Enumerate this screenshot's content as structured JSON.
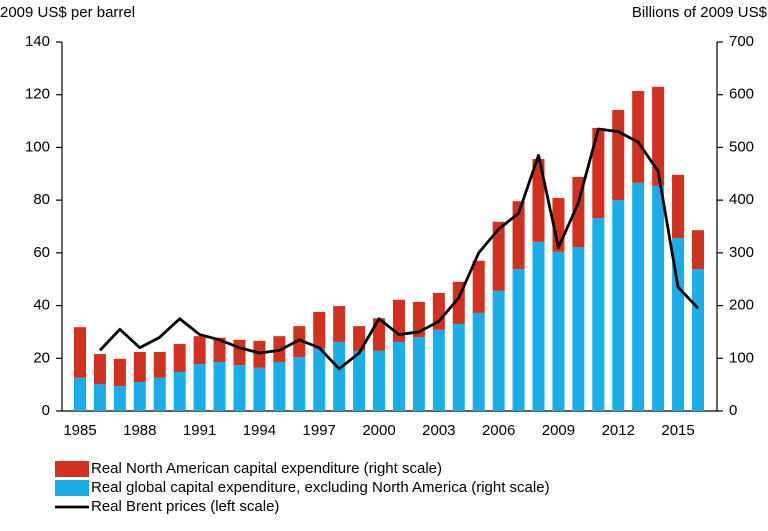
{
  "chart_data": {
    "type": "bar",
    "y_label": "2009 US$ per barrel",
    "y2_label": "Billions of 2009 US$",
    "categories": [
      "1985",
      null,
      null,
      "1988",
      null,
      null,
      "1991",
      null,
      null,
      "1994",
      null,
      null,
      "1997",
      null,
      null,
      "2000",
      null,
      null,
      "2003",
      null,
      null,
      "2006",
      null,
      null,
      "2009",
      null,
      null,
      "2012",
      null,
      null,
      "2015",
      null
    ],
    "series": [
      {
        "name": "Real North American capital expenditure (right scale)",
        "type": "bar",
        "axis": "y2",
        "color": "#d1311f",
        "values": [
          96,
          57,
          52,
          57,
          49,
          53,
          53,
          46,
          48,
          51,
          49,
          59,
          70,
          68,
          47,
          62,
          80,
          67,
          70,
          80,
          99,
          131,
          129,
          157,
          102,
          133,
          171,
          171,
          174,
          188,
          120,
          74
        ]
      },
      {
        "name": "Real global capital expenditure, excluding North America (right scale)",
        "type": "bar",
        "axis": "y2",
        "color": "#1aade8",
        "values": [
          63,
          51,
          47,
          55,
          63,
          74,
          89,
          93,
          87,
          82,
          93,
          102,
          118,
          131,
          114,
          114,
          131,
          140,
          154,
          165,
          186,
          228,
          269,
          321,
          302,
          311,
          366,
          400,
          433,
          427,
          328,
          269
        ]
      },
      {
        "name": "Real Brent prices (left scale)",
        "type": "line",
        "axis": "y",
        "color": "#000000",
        "values": [
          null,
          23,
          31,
          24,
          28,
          35,
          29,
          27,
          24,
          22,
          23,
          27,
          24,
          16,
          22,
          35,
          29,
          30,
          34,
          43,
          60,
          69,
          75,
          97,
          62,
          79,
          107,
          106,
          102,
          91,
          47,
          39
        ]
      }
    ],
    "ylim": [
      0,
      140
    ],
    "yticks": [
      0,
      20,
      40,
      60,
      80,
      100,
      120,
      140
    ],
    "y2lim": [
      0,
      700
    ],
    "y2ticks": [
      0,
      100,
      200,
      300,
      400,
      500,
      600,
      700
    ],
    "grid": false
  }
}
